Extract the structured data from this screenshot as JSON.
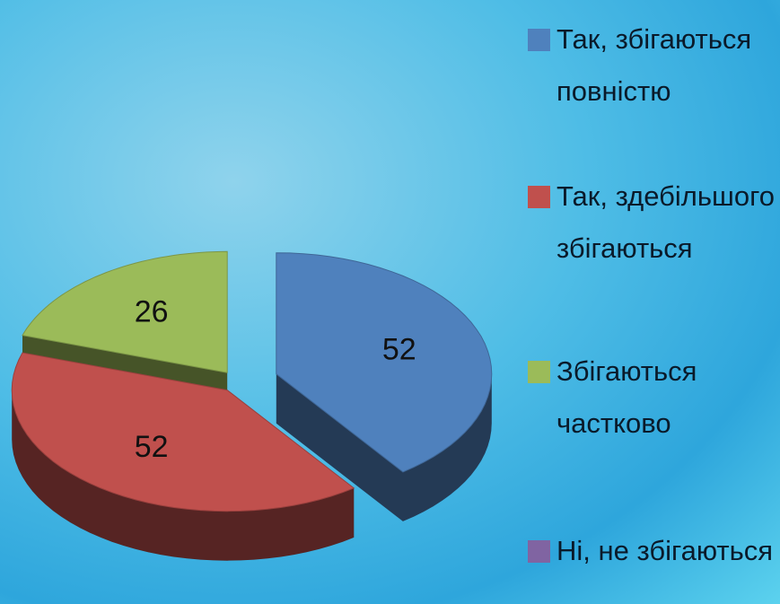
{
  "chart_data": {
    "type": "pie3d",
    "series": [
      {
        "name": "Так, збігаються повністю",
        "color": "#4f81bd",
        "values": [
          52
        ]
      },
      {
        "name": "Так, здебільшого збігаються",
        "color": "#c0504d",
        "values": [
          52
        ]
      },
      {
        "name": "Збігаються частково",
        "color": "#9bbb59",
        "values": [
          26
        ]
      },
      {
        "name": "Ні, не збігаються",
        "color": "#8064a2",
        "values": [
          0
        ]
      }
    ],
    "legend": "right"
  }
}
